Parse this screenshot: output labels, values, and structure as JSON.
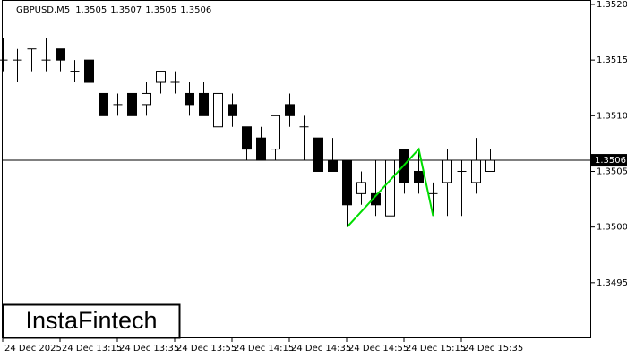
{
  "chart_data": {
    "type": "candlestick",
    "symbol": "GBPUSD,M5",
    "categories": [
      "24 Dec 2025",
      null,
      null,
      null,
      "24 Dec 13:15",
      null,
      null,
      null,
      "24 Dec 13:35",
      null,
      null,
      null,
      "24 Dec 13:55",
      null,
      null,
      null,
      "24 Dec 14:15",
      null,
      null,
      null,
      "24 Dec 14:35",
      null,
      null,
      null,
      "24 Dec 14:55",
      null,
      null,
      null,
      "24 Dec 15:15",
      null,
      null,
      null,
      "24 Dec 15:35",
      null,
      null
    ],
    "open": [
      1.3515,
      1.3515,
      1.3516,
      1.3515,
      1.3516,
      1.3514,
      1.3515,
      1.3512,
      1.3511,
      1.3512,
      1.3511,
      1.3513,
      1.3513,
      1.3512,
      1.3512,
      1.3509,
      1.3511,
      1.3509,
      1.3508,
      1.3507,
      1.3511,
      1.3509,
      1.3508,
      1.3506,
      1.3506,
      1.3503,
      1.3503,
      1.3501,
      1.3507,
      1.3505,
      1.3503,
      1.3504,
      1.3505,
      1.3504,
      1.3505
    ],
    "high": [
      1.3517,
      1.3516,
      1.3516,
      1.3517,
      1.3516,
      1.3515,
      1.3515,
      1.3512,
      1.3512,
      1.3512,
      1.3513,
      1.3514,
      1.3514,
      1.3513,
      1.3513,
      1.3512,
      1.3512,
      1.3509,
      1.3509,
      1.351,
      1.3512,
      1.351,
      1.3508,
      1.3508,
      1.3506,
      1.3505,
      1.3506,
      1.3506,
      1.3507,
      1.3507,
      1.3504,
      1.3507,
      1.3506,
      1.3508,
      1.3507
    ],
    "low": [
      1.3514,
      1.3513,
      1.3514,
      1.3514,
      1.3514,
      1.3513,
      1.3513,
      1.351,
      1.351,
      1.351,
      1.351,
      1.3512,
      1.3512,
      1.351,
      1.351,
      1.3509,
      1.3509,
      1.3506,
      1.3506,
      1.3506,
      1.3509,
      1.3506,
      1.3505,
      1.3505,
      1.35,
      1.3502,
      1.3501,
      1.3501,
      1.3503,
      1.3503,
      1.3501,
      1.3501,
      1.3501,
      1.3503,
      1.3505
    ],
    "close": [
      1.3515,
      1.3515,
      1.3516,
      1.3515,
      1.3515,
      1.3514,
      1.3513,
      1.351,
      1.3511,
      1.351,
      1.3512,
      1.3514,
      1.3513,
      1.3511,
      1.351,
      1.3512,
      1.351,
      1.3507,
      1.3506,
      1.351,
      1.351,
      1.3509,
      1.3505,
      1.3505,
      1.3502,
      1.3504,
      1.3502,
      1.3506,
      1.3504,
      1.3504,
      1.3503,
      1.3506,
      1.3505,
      1.3506,
      1.3506
    ],
    "ylim": [
      1.349,
      1.35204
    ],
    "yticks": [
      {
        "value": 1.3495,
        "label": "1.3495"
      },
      {
        "value": 1.35,
        "label": "1.3500"
      },
      {
        "value": 1.3505,
        "label": "1.3505"
      },
      {
        "value": 1.351,
        "label": "1.3510"
      },
      {
        "value": 1.3515,
        "label": "1.3515"
      },
      {
        "value": 1.352,
        "label": "1.3520"
      }
    ],
    "pattern": {
      "color": "#00dd00",
      "points": [
        [
          24,
          1.35
        ],
        [
          29,
          1.3507
        ],
        [
          30,
          1.3501
        ]
      ]
    }
  },
  "logo": "InstaFintech"
}
